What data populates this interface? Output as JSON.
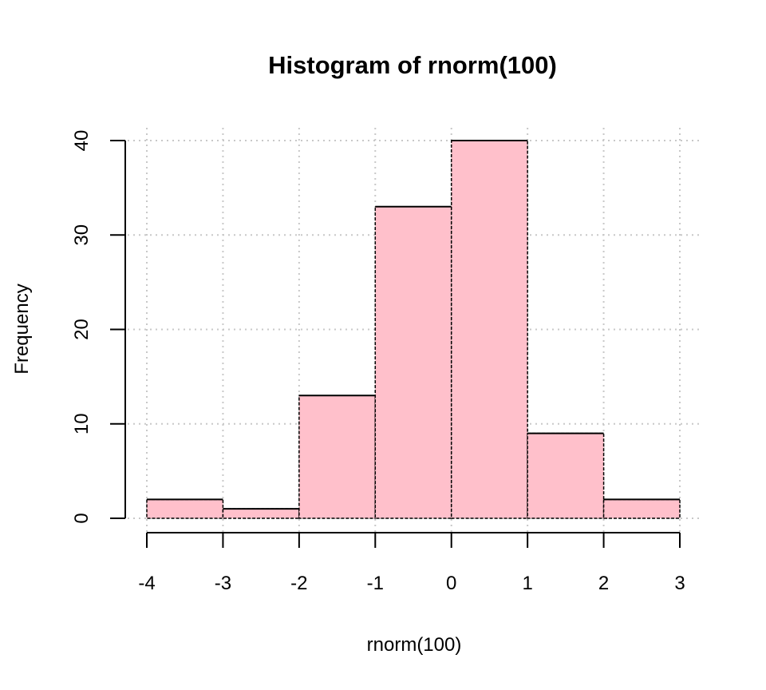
{
  "chart_data": {
    "type": "bar",
    "title": "Histogram of rnorm(100)",
    "xlabel": "rnorm(100)",
    "ylabel": "Frequency",
    "bins": [
      {
        "from": -4,
        "to": -3,
        "count": 2
      },
      {
        "from": -3,
        "to": -2,
        "count": 1
      },
      {
        "from": -2,
        "to": -1,
        "count": 13
      },
      {
        "from": -1,
        "to": 0,
        "count": 33
      },
      {
        "from": 0,
        "to": 1,
        "count": 40
      },
      {
        "from": 1,
        "to": 2,
        "count": 9
      },
      {
        "from": 2,
        "to": 3,
        "count": 2
      }
    ],
    "xlim": [
      -4,
      3
    ],
    "ylim": [
      0,
      40
    ],
    "x_ticks": [
      "-4",
      "-3",
      "-2",
      "-1",
      "0",
      "1",
      "2",
      "3"
    ],
    "y_ticks": [
      "0",
      "10",
      "20",
      "30",
      "40"
    ],
    "grid": true,
    "colors": {
      "bar_fill": "#ffc0cb",
      "bar_border": "#000000",
      "grid": "#c8c8c8"
    }
  }
}
